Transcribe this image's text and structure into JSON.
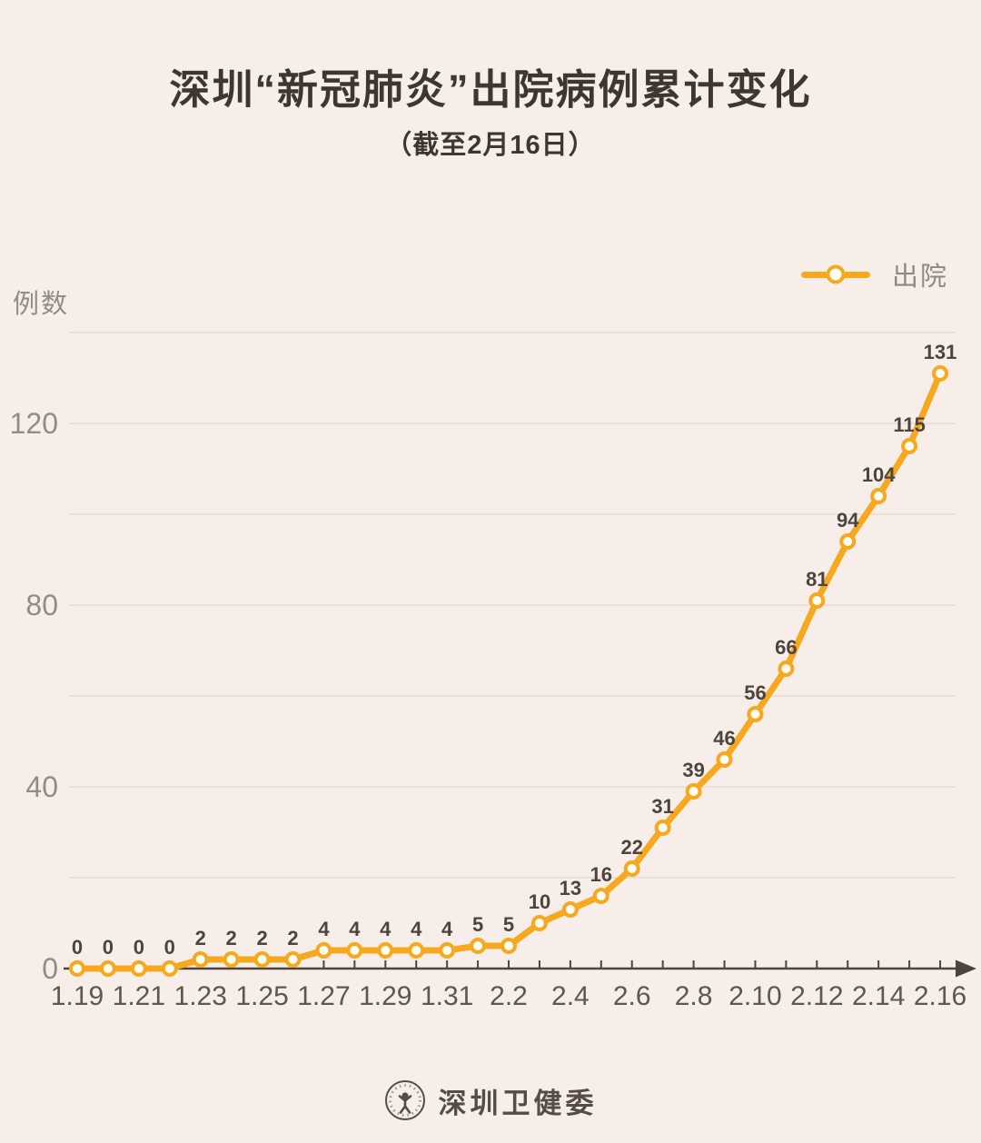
{
  "page": {
    "background": "#f8eee9"
  },
  "header": {
    "title": "深圳“新冠肺炎”出院病例累计变化",
    "subtitle": "（截至2月16日）"
  },
  "legend": {
    "label": "出院"
  },
  "y_axis_title": "例数",
  "chart_data": {
    "type": "line",
    "title": "深圳“新冠肺炎”出院病例累计变化（截至2月16日）",
    "xlabel": "",
    "ylabel": "例数",
    "categories": [
      "1.19",
      "1.20",
      "1.21",
      "1.22",
      "1.23",
      "1.24",
      "1.25",
      "1.26",
      "1.27",
      "1.28",
      "1.29",
      "1.30",
      "1.31",
      "2.1",
      "2.2",
      "2.3",
      "2.4",
      "2.5",
      "2.6",
      "2.7",
      "2.8",
      "2.9",
      "2.10",
      "2.11",
      "2.12",
      "2.13",
      "2.14",
      "2.15",
      "2.16"
    ],
    "series": [
      {
        "name": "出院",
        "values": [
          0,
          0,
          0,
          0,
          2,
          2,
          2,
          2,
          4,
          4,
          4,
          4,
          4,
          5,
          5,
          10,
          13,
          16,
          22,
          31,
          39,
          46,
          56,
          66,
          81,
          94,
          104,
          115,
          131
        ]
      }
    ],
    "x_label_interval": 2,
    "x_tick_labels_shown": [
      "1.19",
      "1.21",
      "1.23",
      "1.25",
      "1.27",
      "1.29",
      "1.31",
      "2.2",
      "2.4",
      "2.6",
      "2.8",
      "2.10",
      "2.12",
      "2.14",
      "2.16"
    ],
    "ylim": [
      0,
      140
    ],
    "grid": true,
    "grid_step": 20,
    "y_ticks_labeled": [
      0,
      40,
      80,
      120
    ],
    "point_labels_shown": true,
    "legend_position": "top-right",
    "marker": "circle-open",
    "colors": {
      "line": "#f6a91f",
      "marker_fill": "#fffdf4",
      "grid": "#e7dcd6",
      "axis": "#4e443c",
      "y_tick_label": "#948b85",
      "x_tick_label": "#5f564e",
      "value_label": "#4c443d"
    }
  },
  "footer": {
    "org": "深圳卫健委"
  }
}
